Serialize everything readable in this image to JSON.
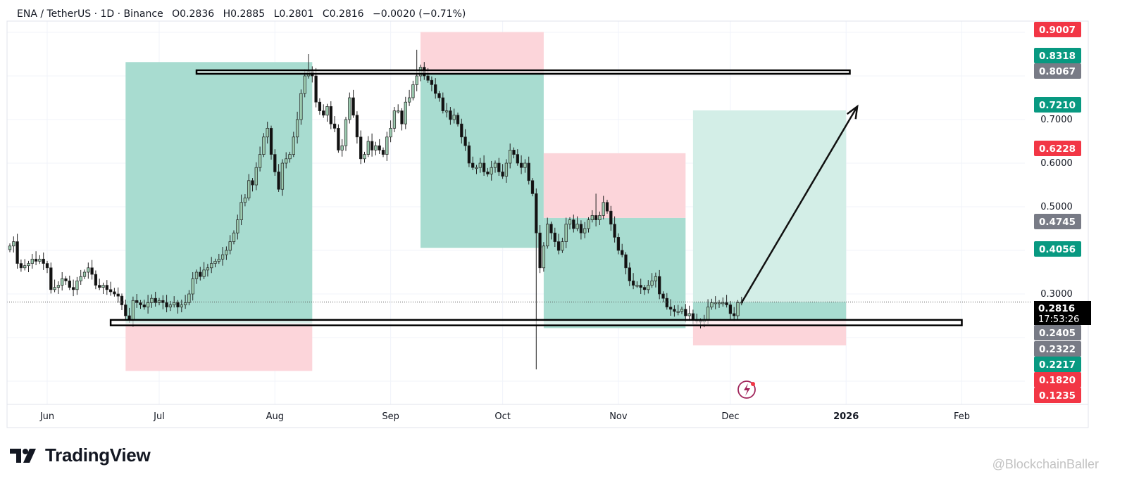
{
  "header": {
    "symbol": "ENA / TetherUS · 1D · Binance",
    "open": "O0.2836",
    "high": "H0.2885",
    "low": "L0.2801",
    "close": "C0.2816",
    "change": "−0.0020 (−0.71%)"
  },
  "branding": {
    "logo_text": "TradingView",
    "watermark": "@BlockchainBaller"
  },
  "colors": {
    "up": "#9ccbb0",
    "down": "#111111",
    "profit_zone": "#a8dcd0",
    "profit_zone_light": "#d3eee7",
    "loss_zone": "#fcd5da",
    "tag_green": "#089981",
    "tag_red": "#f23645",
    "tag_gray": "#787b86",
    "tag_black": "#000000"
  },
  "chart_data": {
    "type": "candlestick",
    "title": "ENA / TetherUS · 1D · Binance",
    "start_date": "2025-05-22",
    "closes": [
      0.41,
      0.42,
      0.37,
      0.36,
      0.365,
      0.37,
      0.38,
      0.375,
      0.38,
      0.37,
      0.36,
      0.31,
      0.315,
      0.32,
      0.335,
      0.33,
      0.315,
      0.31,
      0.33,
      0.34,
      0.35,
      0.36,
      0.345,
      0.32,
      0.315,
      0.32,
      0.31,
      0.305,
      0.3,
      0.295,
      0.275,
      0.25,
      0.24,
      0.285,
      0.28,
      0.275,
      0.27,
      0.28,
      0.29,
      0.28,
      0.285,
      0.28,
      0.27,
      0.275,
      0.28,
      0.27,
      0.275,
      0.28,
      0.3,
      0.335,
      0.35,
      0.34,
      0.355,
      0.36,
      0.37,
      0.375,
      0.38,
      0.39,
      0.4,
      0.42,
      0.44,
      0.47,
      0.51,
      0.52,
      0.56,
      0.55,
      0.59,
      0.62,
      0.66,
      0.68,
      0.62,
      0.58,
      0.54,
      0.6,
      0.61,
      0.62,
      0.66,
      0.7,
      0.76,
      0.8,
      0.81,
      0.8,
      0.74,
      0.72,
      0.71,
      0.73,
      0.69,
      0.68,
      0.63,
      0.64,
      0.7,
      0.75,
      0.71,
      0.66,
      0.61,
      0.62,
      0.65,
      0.63,
      0.64,
      0.63,
      0.62,
      0.66,
      0.68,
      0.72,
      0.72,
      0.69,
      0.74,
      0.75,
      0.78,
      0.8,
      0.82,
      0.8,
      0.79,
      0.78,
      0.76,
      0.75,
      0.72,
      0.72,
      0.7,
      0.71,
      0.69,
      0.66,
      0.64,
      0.6,
      0.59,
      0.59,
      0.6,
      0.58,
      0.575,
      0.59,
      0.6,
      0.58,
      0.57,
      0.6,
      0.63,
      0.62,
      0.6,
      0.59,
      0.6,
      0.56,
      0.53,
      0.44,
      0.36,
      0.41,
      0.46,
      0.44,
      0.42,
      0.4,
      0.42,
      0.46,
      0.47,
      0.45,
      0.46,
      0.44,
      0.45,
      0.47,
      0.48,
      0.47,
      0.48,
      0.51,
      0.49,
      0.46,
      0.43,
      0.4,
      0.39,
      0.36,
      0.33,
      0.32,
      0.32,
      0.315,
      0.31,
      0.32,
      0.33,
      0.34,
      0.3,
      0.29,
      0.27,
      0.265,
      0.26,
      0.26,
      0.265,
      0.25,
      0.255,
      0.24,
      0.238,
      0.236,
      0.24,
      0.27,
      0.28,
      0.28,
      0.28,
      0.28,
      0.275,
      0.255,
      0.25,
      0.28,
      0.2816
    ],
    "notable_extremes": [
      {
        "date": "2025-08-10",
        "high": 0.85
      },
      {
        "date": "2025-09-08",
        "high": 0.86
      },
      {
        "date": "2025-10-10",
        "low": 0.127
      },
      {
        "date": "2025-10-26",
        "high": 0.53
      }
    ],
    "last_price": 0.2816,
    "countdown": "17:53:26",
    "y_axis": {
      "range": [
        0.1,
        0.92
      ],
      "ticks": [
        "0.7000",
        "0.6000",
        "0.5000",
        "0.3000"
      ],
      "tick_values": [
        0.7,
        0.6,
        0.5,
        0.3
      ]
    },
    "x_axis": {
      "ticks": [
        {
          "label": "Jun",
          "date": "2025-06-01"
        },
        {
          "label": "Jul",
          "date": "2025-07-01"
        },
        {
          "label": "Aug",
          "date": "2025-08-01"
        },
        {
          "label": "Sep",
          "date": "2025-09-01"
        },
        {
          "label": "Oct",
          "date": "2025-10-01"
        },
        {
          "label": "Nov",
          "date": "2025-11-01"
        },
        {
          "label": "Dec",
          "date": "2025-12-01"
        },
        {
          "label": "2026",
          "date": "2026-01-01"
        },
        {
          "label": "Feb",
          "date": "2026-02-01"
        }
      ]
    },
    "positions": [
      {
        "side": "long",
        "from": "2025-06-22",
        "to": "2025-08-11",
        "entry": 0.2322,
        "target": 0.8318,
        "stop": 0.1235
      },
      {
        "side": "short",
        "from": "2025-09-09",
        "to": "2025-10-12",
        "entry": 0.8067,
        "target": 0.4056,
        "stop": 0.9007
      },
      {
        "side": "short",
        "from": "2025-10-12",
        "to": "2025-11-19",
        "entry": 0.4745,
        "target": 0.2217,
        "stop": 0.6228
      },
      {
        "side": "long",
        "from": "2025-11-21",
        "to": "2026-01-01",
        "entry": 0.2816,
        "target": 0.721,
        "stop": 0.182,
        "light": true
      }
    ],
    "zones": [
      {
        "name": "resistance",
        "from": "2025-07-11",
        "to": "2026-01-02",
        "top": 0.813,
        "bottom": 0.805
      },
      {
        "name": "support",
        "from": "2025-06-18",
        "to": "2026-02-01",
        "top": 0.2405,
        "bottom": 0.228
      }
    ],
    "arrow": {
      "from": {
        "date": "2025-12-04",
        "price": 0.28
      },
      "to": {
        "date": "2026-01-04",
        "price": 0.73
      }
    },
    "price_tags": [
      {
        "label": "0.9007",
        "color": "red"
      },
      {
        "label": "0.8318",
        "color": "green"
      },
      {
        "label": "0.8067",
        "color": "gray"
      },
      {
        "label": "0.7210",
        "color": "green"
      },
      {
        "label": "0.6228",
        "color": "red"
      },
      {
        "label": "0.4745",
        "color": "gray"
      },
      {
        "label": "0.4056",
        "color": "green"
      },
      {
        "label": "0.2405",
        "color": "gray"
      },
      {
        "label": "0.2322",
        "color": "gray"
      },
      {
        "label": "0.2217",
        "color": "green"
      },
      {
        "label": "0.1820",
        "color": "red"
      },
      {
        "label": "0.1235",
        "color": "red"
      }
    ]
  }
}
